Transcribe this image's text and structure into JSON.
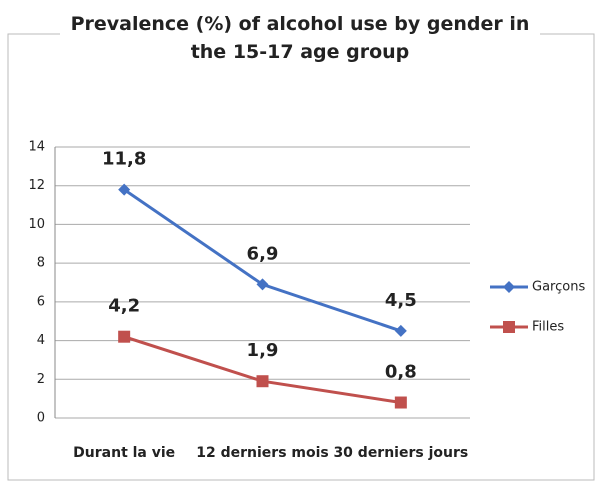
{
  "chart_data": {
    "type": "line",
    "title": "Prevalence (%) of alcohol use by gender in the 15-17 age group",
    "categories": [
      "Durant la vie",
      "12 derniers mois",
      "30 derniers jours"
    ],
    "series": [
      {
        "name": "Garçons",
        "color": "#4472c4",
        "marker": "diamond",
        "values": [
          11.8,
          6.9,
          4.5
        ],
        "value_labels": [
          "11,8",
          "6,9",
          "4,5"
        ]
      },
      {
        "name": "Filles",
        "color": "#c0504d",
        "marker": "square",
        "values": [
          4.2,
          1.9,
          0.8
        ],
        "value_labels": [
          "4,2",
          "1,9",
          "0,8"
        ]
      }
    ],
    "ylim": [
      0,
      14
    ],
    "yticks": [
      0,
      2,
      4,
      6,
      8,
      10,
      12,
      14
    ],
    "grid": true,
    "legend": "right"
  }
}
